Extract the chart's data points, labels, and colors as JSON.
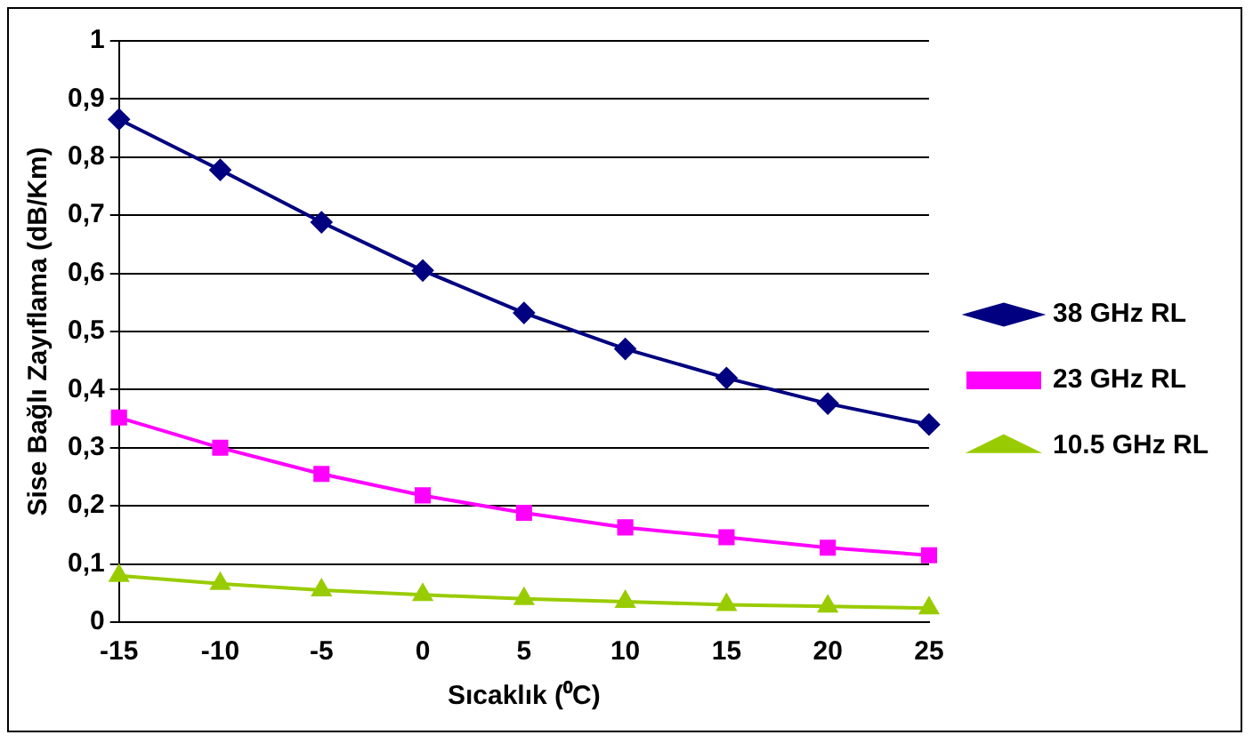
{
  "chart_data": {
    "type": "line",
    "xlabel": "Sıcaklık (⁰C)",
    "ylabel": "Sise Bağlı Zayıflama (dB/Km)",
    "categories": [
      "-15",
      "-10",
      "-5",
      "0",
      "5",
      "10",
      "15",
      "20",
      "25"
    ],
    "series": [
      {
        "name": "38 GHz RL",
        "color": "#000080",
        "marker": "diamond",
        "values": [
          0.865,
          0.778,
          0.688,
          0.605,
          0.532,
          0.47,
          0.42,
          0.376,
          0.34
        ]
      },
      {
        "name": "23 GHz RL",
        "color": "#ff00ff",
        "marker": "square",
        "values": [
          0.352,
          0.3,
          0.255,
          0.218,
          0.188,
          0.163,
          0.146,
          0.128,
          0.115
        ]
      },
      {
        "name": "10.5 GHz RL",
        "color": "#99cc00",
        "marker": "triangle",
        "values": [
          0.08,
          0.066,
          0.055,
          0.047,
          0.04,
          0.035,
          0.03,
          0.027,
          0.024
        ]
      }
    ],
    "ylim": [
      0,
      1
    ],
    "yticks": [
      0,
      {
        "value": 0.1,
        "label": "0,1"
      },
      {
        "value": 0.2,
        "label": "0,2"
      },
      {
        "value": 0.3,
        "label": "0,3"
      },
      {
        "value": 0.4,
        "label": "0,4"
      },
      {
        "value": 0.5,
        "label": "0,5"
      },
      {
        "value": 0.6,
        "label": "0,6"
      },
      {
        "value": 0.7,
        "label": "0,7"
      },
      {
        "value": 0.8,
        "label": "0,8"
      },
      {
        "value": 0.9,
        "label": "0,9"
      },
      1
    ],
    "grid": "y",
    "legend": "right"
  }
}
